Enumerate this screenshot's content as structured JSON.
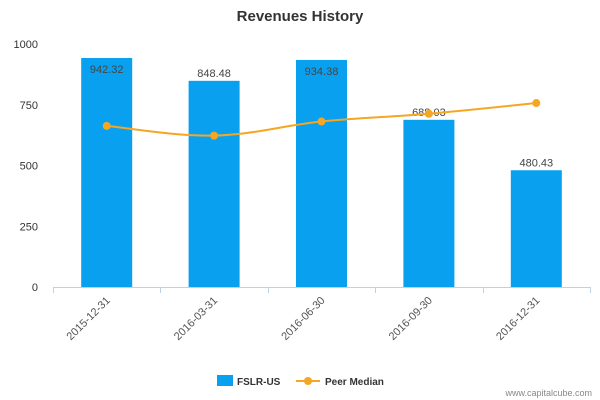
{
  "chart_data": {
    "type": "bar",
    "title": "Revenues History",
    "categories": [
      "2015-12-31",
      "2016-03-31",
      "2016-06-30",
      "2016-09-30",
      "2016-12-31"
    ],
    "series": [
      {
        "name": "FSLR-US",
        "type": "bar",
        "values": [
          942.32,
          848.48,
          934.38,
          688.03,
          480.43
        ],
        "labels": [
          "942.32",
          "848.48",
          "934.38",
          "688.03",
          "480.43"
        ],
        "color": "#0aa0f0"
      },
      {
        "name": "Peer Median",
        "type": "line",
        "values": [
          663,
          623,
          681,
          713,
          757
        ],
        "color": "#f5a623"
      }
    ],
    "ylim": [
      0,
      1000
    ],
    "yticks": [
      "0",
      "250",
      "500",
      "750",
      "1000"
    ],
    "legend_position": "bottom-center",
    "grid": false
  },
  "credit": "www.capitalcube.com"
}
